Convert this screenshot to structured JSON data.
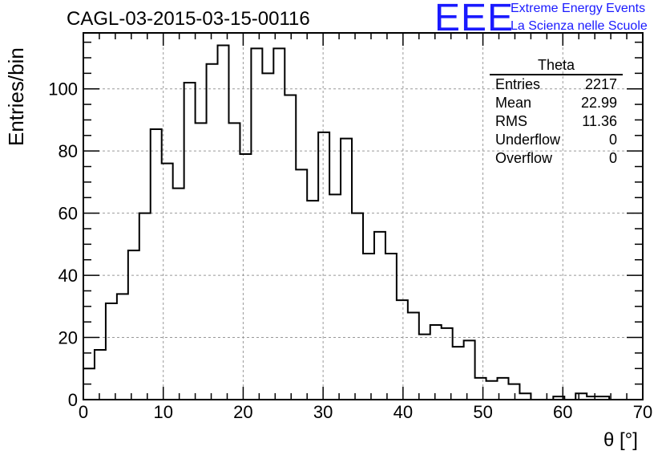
{
  "title": "CAGL-03-2015-03-15-00116",
  "logo": {
    "mark": "EEE",
    "line1": "Extreme Energy Events",
    "line2": "La Scienza nelle Scuole",
    "color": "#1a1aff"
  },
  "stats": {
    "name": "Theta",
    "rows": [
      {
        "label": "Entries",
        "value": "2217"
      },
      {
        "label": "Mean",
        "value": "22.99"
      },
      {
        "label": "RMS",
        "value": "11.36"
      },
      {
        "label": "Underflow",
        "value": "0"
      },
      {
        "label": "Overflow",
        "value": "0"
      }
    ]
  },
  "chart_data": {
    "type": "histogram",
    "title": "CAGL-03-2015-03-15-00116",
    "xlabel": "θ [°]",
    "ylabel": "Entries/bin",
    "xlim": [
      0,
      70
    ],
    "ylim": [
      0,
      118
    ],
    "grid": true,
    "bin_width": 1.4,
    "bin_start": 0,
    "xticks": [
      0,
      10,
      20,
      30,
      40,
      50,
      60,
      70
    ],
    "yticks": [
      0,
      20,
      40,
      60,
      80,
      100
    ],
    "values": [
      10,
      16,
      31,
      34,
      48,
      60,
      87,
      76,
      68,
      102,
      89,
      108,
      114,
      89,
      79,
      113,
      105,
      113,
      98,
      74,
      64,
      86,
      66,
      84,
      60,
      47,
      54,
      47,
      32,
      28,
      21,
      24,
      23,
      17,
      19,
      7,
      6,
      7,
      5,
      2,
      0,
      0,
      1,
      0,
      2,
      1,
      1,
      0,
      0,
      0
    ]
  }
}
